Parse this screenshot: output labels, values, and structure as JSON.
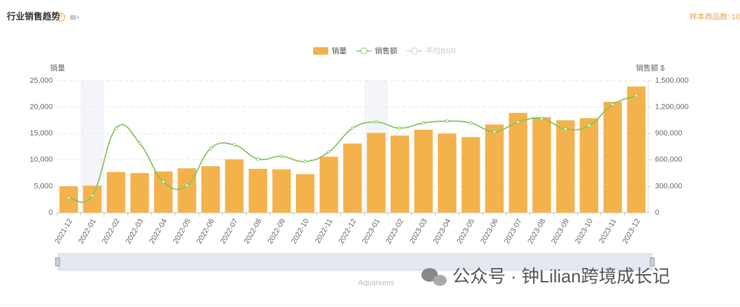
{
  "header": {
    "title": "行业销售趋势",
    "sample_count": "样本商品数: 10"
  },
  "chart_data": {
    "type": "bar-line",
    "categories": [
      "2021-12",
      "2022-01",
      "2022-02",
      "2022-03",
      "2022-04",
      "2022-05",
      "2022-06",
      "2022-07",
      "2022-08",
      "2022-09",
      "2022-10",
      "2022-11",
      "2022-12",
      "2023-01",
      "2023-02",
      "2023-03",
      "2023-04",
      "2023-05",
      "2023-06",
      "2023-07",
      "2023-08",
      "2023-09",
      "2023-10",
      "2023-11",
      "2023-12"
    ],
    "series": [
      {
        "name": "销量",
        "type": "bar",
        "color": "#f4b24c",
        "values": [
          5000,
          5100,
          7700,
          7500,
          7800,
          8400,
          8800,
          10100,
          8300,
          8200,
          7300,
          10600,
          13100,
          15100,
          14600,
          15700,
          15000,
          14300,
          16700,
          18900,
          18100,
          17500,
          17900,
          21000,
          23900
        ]
      },
      {
        "name": "销售额",
        "type": "line",
        "axis": "y2",
        "color": "#82c55f",
        "values": [
          170000,
          195000,
          960000,
          790000,
          350000,
          310000,
          730000,
          770000,
          610000,
          640000,
          580000,
          690000,
          960000,
          1030000,
          960000,
          1020000,
          1040000,
          1020000,
          920000,
          1030000,
          1070000,
          950000,
          990000,
          1230000,
          1330000
        ]
      },
      {
        "name": "平均BSR",
        "type": "line",
        "color": "#cccccc",
        "hidden": true
      }
    ],
    "ylabel": "销量",
    "y2label": "销售额 $",
    "ylim": [
      0,
      25000
    ],
    "yticks": [
      0,
      {
        "value": 5000,
        "label": "5,000"
      },
      {
        "value": 10000,
        "label": "10,000"
      },
      {
        "value": 15000,
        "label": "15,000"
      },
      {
        "value": 20000,
        "label": "20,000"
      },
      {
        "value": 25000,
        "label": "25,000"
      }
    ],
    "y2lim": [
      0,
      1500000
    ],
    "y2ticks": [
      0,
      {
        "value": 300000,
        "label": "300,000"
      },
      {
        "value": 600000,
        "label": "600,000"
      },
      {
        "value": 900000,
        "label": "900,000"
      },
      {
        "value": 1200000,
        "label": "1,200,000"
      },
      {
        "value": 1500000,
        "label": "1,500,000"
      }
    ],
    "grid": true,
    "slider_label": "Aquariums"
  },
  "watermark": "公众号 · 钟Lilian跨境成长记"
}
